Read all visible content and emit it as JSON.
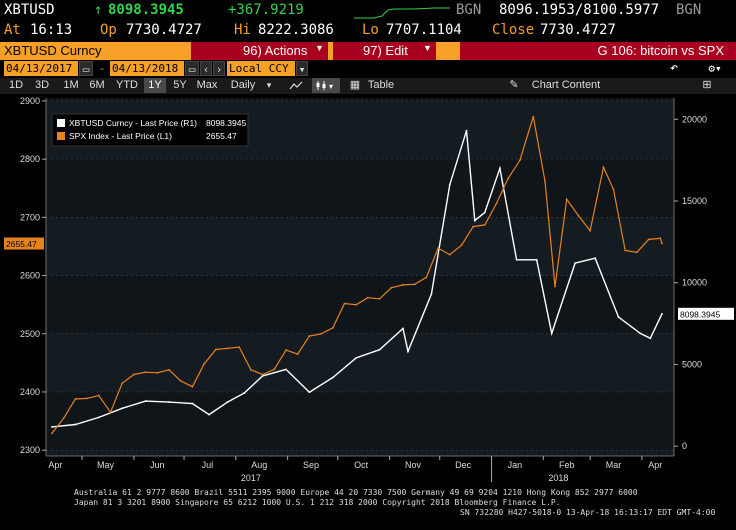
{
  "quote": {
    "ticker": "XBTUSD",
    "last_arrow": "↑",
    "last": "8098.3945",
    "change": "+367.9219",
    "source1": "BGN",
    "bid_ask": "8096.1953/8100.5977",
    "source2": "BGN",
    "at_label": "At",
    "time": "16:13",
    "open_label": "Op",
    "open": "7730.4727",
    "hi_label": "Hi",
    "hi": "8222.3086",
    "lo_label": "Lo",
    "lo": "7707.1104",
    "close_label": "Close",
    "close": "7730.4727"
  },
  "titlebar": {
    "security": "XBTUSD Curncy",
    "actions_label": "96) Actions",
    "edit_label": "97) Edit",
    "chart_title": "G 106: bitcoin vs SPX"
  },
  "toolbar1": {
    "start_date": "04/13/2017",
    "end_date": "04/13/2018",
    "currency": "Local CCY"
  },
  "toolbar2": {
    "periods": [
      "1D",
      "3D",
      "1M",
      "6M",
      "YTD",
      "1Y",
      "5Y",
      "Max"
    ],
    "active_period": "1Y",
    "frequency": "Daily",
    "table_label": "Table",
    "chart_content_label": "Chart Content"
  },
  "legend": {
    "item1_label": "XBTUSD Curncy - Last Price (R1)",
    "item1_value": "8098.3945",
    "item2_label": "SPX Index - Last Price (L1)",
    "item2_value": "2655.47"
  },
  "chart_data": {
    "type": "line",
    "left_axis": {
      "ticks": [
        2300,
        2400,
        2500,
        2600,
        2700,
        2800,
        2900
      ],
      "range": [
        2290,
        2905
      ]
    },
    "right_axis": {
      "ticks": [
        0,
        5000,
        10000,
        15000,
        20000
      ],
      "range": [
        -600,
        21300
      ]
    },
    "months": [
      "Apr",
      "May",
      "Jun",
      "Jul",
      "Aug",
      "Sep",
      "Oct",
      "Nov",
      "Dec",
      "Jan",
      "Feb",
      "Mar",
      "Apr"
    ],
    "years": [
      "2017",
      "2018"
    ],
    "left_last_label": "2655.47",
    "right_last_label": "8098.3945",
    "colors": {
      "spx": "#e8821e",
      "xbt": "#ffffff"
    },
    "series": [
      {
        "name": "SPX Index - Last Price (L1)",
        "axis": "left",
        "values": [
          [
            "2017-04-13",
            2329
          ],
          [
            "2017-04-20",
            2355
          ],
          [
            "2017-04-27",
            2388
          ],
          [
            "2017-05-04",
            2389
          ],
          [
            "2017-05-11",
            2394
          ],
          [
            "2017-05-18",
            2365
          ],
          [
            "2017-05-25",
            2415
          ],
          [
            "2017-06-01",
            2430
          ],
          [
            "2017-06-08",
            2434
          ],
          [
            "2017-06-15",
            2433
          ],
          [
            "2017-06-22",
            2438
          ],
          [
            "2017-06-29",
            2419
          ],
          [
            "2017-07-06",
            2409
          ],
          [
            "2017-07-13",
            2448
          ],
          [
            "2017-07-20",
            2473
          ],
          [
            "2017-07-27",
            2475
          ],
          [
            "2017-08-03",
            2477
          ],
          [
            "2017-08-10",
            2438
          ],
          [
            "2017-08-17",
            2430
          ],
          [
            "2017-08-24",
            2439
          ],
          [
            "2017-08-31",
            2472
          ],
          [
            "2017-09-07",
            2465
          ],
          [
            "2017-09-14",
            2496
          ],
          [
            "2017-09-21",
            2500
          ],
          [
            "2017-09-28",
            2510
          ],
          [
            "2017-10-05",
            2552
          ],
          [
            "2017-10-12",
            2550
          ],
          [
            "2017-10-19",
            2562
          ],
          [
            "2017-10-26",
            2560
          ],
          [
            "2017-11-02",
            2579
          ],
          [
            "2017-11-09",
            2584
          ],
          [
            "2017-11-16",
            2585
          ],
          [
            "2017-11-23",
            2597
          ],
          [
            "2017-11-30",
            2647
          ],
          [
            "2017-12-07",
            2636
          ],
          [
            "2017-12-14",
            2652
          ],
          [
            "2017-12-21",
            2684
          ],
          [
            "2017-12-28",
            2687
          ],
          [
            "2018-01-04",
            2724
          ],
          [
            "2018-01-11",
            2767
          ],
          [
            "2018-01-18",
            2798
          ],
          [
            "2018-01-26",
            2873
          ],
          [
            "2018-02-02",
            2762
          ],
          [
            "2018-02-08",
            2581
          ],
          [
            "2018-02-15",
            2731
          ],
          [
            "2018-02-22",
            2703
          ],
          [
            "2018-03-01",
            2677
          ],
          [
            "2018-03-09",
            2786
          ],
          [
            "2018-03-15",
            2748
          ],
          [
            "2018-03-22",
            2643
          ],
          [
            "2018-03-29",
            2640
          ],
          [
            "2018-04-05",
            2662
          ],
          [
            "2018-04-12",
            2664
          ],
          [
            "2018-04-13",
            2655
          ]
        ]
      },
      {
        "name": "XBTUSD Curncy - Last Price (R1)",
        "axis": "right",
        "values": [
          [
            "2017-04-13",
            1180
          ],
          [
            "2017-04-27",
            1330
          ],
          [
            "2017-05-11",
            1760
          ],
          [
            "2017-05-25",
            2320
          ],
          [
            "2017-06-08",
            2760
          ],
          [
            "2017-06-22",
            2700
          ],
          [
            "2017-07-06",
            2610
          ],
          [
            "2017-07-16",
            1930
          ],
          [
            "2017-07-27",
            2700
          ],
          [
            "2017-08-06",
            3250
          ],
          [
            "2017-08-17",
            4300
          ],
          [
            "2017-08-31",
            4700
          ],
          [
            "2017-09-14",
            3300
          ],
          [
            "2017-09-28",
            4200
          ],
          [
            "2017-10-12",
            5400
          ],
          [
            "2017-10-26",
            5900
          ],
          [
            "2017-11-09",
            7200
          ],
          [
            "2017-11-12",
            5800
          ],
          [
            "2017-11-26",
            9300
          ],
          [
            "2017-12-07",
            16000
          ],
          [
            "2017-12-17",
            19300
          ],
          [
            "2017-12-22",
            13800
          ],
          [
            "2017-12-28",
            14300
          ],
          [
            "2018-01-06",
            17000
          ],
          [
            "2018-01-16",
            11400
          ],
          [
            "2018-01-28",
            11400
          ],
          [
            "2018-02-06",
            6900
          ],
          [
            "2018-02-20",
            11200
          ],
          [
            "2018-03-04",
            11500
          ],
          [
            "2018-03-18",
            7900
          ],
          [
            "2018-03-31",
            6900
          ],
          [
            "2018-04-06",
            6600
          ],
          [
            "2018-04-13",
            8098
          ]
        ]
      }
    ]
  },
  "footer": {
    "line1": "Australia 61 2 9777 8600 Brazil 5511 2395 9000 Europe 44 20 7330 7500 Germany 49 69 9204 1210 Hong Kong 852 2977 6000",
    "line2": "Japan 81 3 3201 8900        Singapore 65 6212 1000        U.S. 1 212 318 2000            Copyright 2018 Bloomberg Finance L.P.",
    "line3": "SN 732280 H427-5018-0 13-Apr-18 16:13:17 EDT  GMT-4:00"
  }
}
